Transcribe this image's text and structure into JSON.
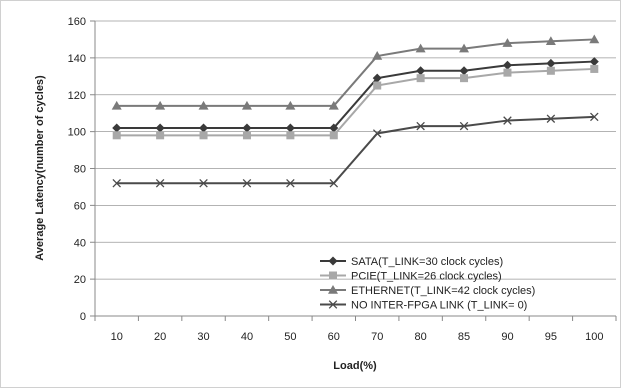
{
  "chart_data": {
    "type": "line",
    "title": "",
    "xlabel": "Load(%)",
    "ylabel": "Average Latency(number of cycles)",
    "categories": [
      "10",
      "20",
      "30",
      "40",
      "50",
      "60",
      "70",
      "80",
      "85",
      "90",
      "95",
      "100"
    ],
    "ylim": [
      0,
      160
    ],
    "yticks": [
      0,
      20,
      40,
      60,
      80,
      100,
      120,
      140,
      160
    ],
    "grid": "horizontal",
    "legend_position": "bottom-right",
    "series": [
      {
        "name": "SATA(T_LINK=30 clock cycles)",
        "marker": "diamond",
        "color": "#3a3a3a",
        "values": [
          102,
          102,
          102,
          102,
          102,
          102,
          129,
          133,
          133,
          136,
          137,
          138
        ]
      },
      {
        "name": "PCIE(T_LINK=26 clock cycles)",
        "marker": "square",
        "color": "#a8a8a8",
        "values": [
          98,
          98,
          98,
          98,
          98,
          98,
          125,
          129,
          129,
          132,
          133,
          134
        ]
      },
      {
        "name": "ETHERNET(T_LINK=42 clock cycles)",
        "marker": "triangle",
        "color": "#7a7a7a",
        "values": [
          114,
          114,
          114,
          114,
          114,
          114,
          141,
          145,
          145,
          148,
          149,
          150
        ]
      },
      {
        "name": "NO INTER-FPGA LINK (T_LINK= 0)",
        "marker": "x",
        "color": "#4a4a4a",
        "values": [
          72,
          72,
          72,
          72,
          72,
          72,
          99,
          103,
          103,
          106,
          107,
          108
        ]
      }
    ]
  }
}
